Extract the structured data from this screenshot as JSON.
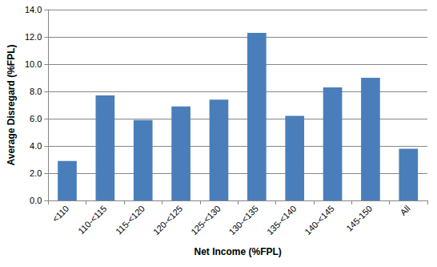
{
  "chart_data": {
    "type": "bar",
    "x_label": "Net Income (%FPL)",
    "y_label": "Average Disregard (%FPL)",
    "categories": [
      "<110",
      "110-<115",
      "115-<120",
      "120-<125",
      "125-<130",
      "130-<135",
      "135-<140",
      "140-<145",
      "145-150",
      "All"
    ],
    "values": [
      2.9,
      7.7,
      5.9,
      6.9,
      7.4,
      12.3,
      6.2,
      8.3,
      9.0,
      3.8
    ],
    "color": "#4a7ebb",
    "ylim": [
      0,
      14
    ],
    "yticks": [
      {
        "value": 0,
        "label": "0.0"
      },
      {
        "value": 2,
        "label": "2.0"
      },
      {
        "value": 4,
        "label": "4.0"
      },
      {
        "value": 6,
        "label": "6.0"
      },
      {
        "value": 8,
        "label": "8.0"
      },
      {
        "value": 10,
        "label": "10.0"
      },
      {
        "value": 12,
        "label": "12.0"
      },
      {
        "value": 14,
        "label": "14.0"
      }
    ],
    "grid": true
  }
}
